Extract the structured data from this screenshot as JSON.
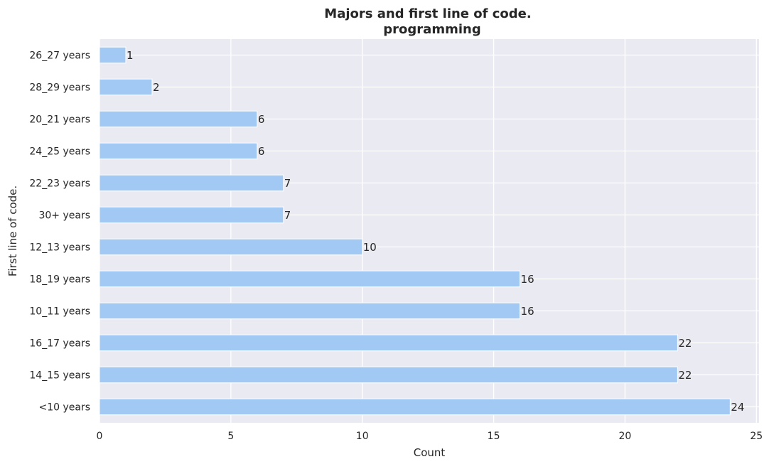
{
  "colors": {
    "plot_background": "#eaeaf2",
    "grid": "#ffffff",
    "bar": "#a1c9f4",
    "text": "#262626"
  },
  "chart_data": {
    "type": "bar",
    "orientation": "horizontal",
    "title": "Majors and first line of code.",
    "subtitle": "programming",
    "xlabel": "Count",
    "ylabel": "First line of code.",
    "xlim": [
      0,
      25.1
    ],
    "xticks": [
      0,
      5,
      10,
      15,
      20,
      25
    ],
    "grid": true,
    "categories": [
      "26_27 years",
      "28_29 years",
      "20_21 years",
      "24_25 years",
      "22_23 years",
      "30+ years",
      "12_13 years",
      "18_19 years",
      "10_11 years",
      "16_17 years",
      "14_15 years",
      "<10 years"
    ],
    "values": [
      1,
      2,
      6,
      6,
      7,
      7,
      10,
      16,
      16,
      22,
      22,
      24
    ]
  }
}
